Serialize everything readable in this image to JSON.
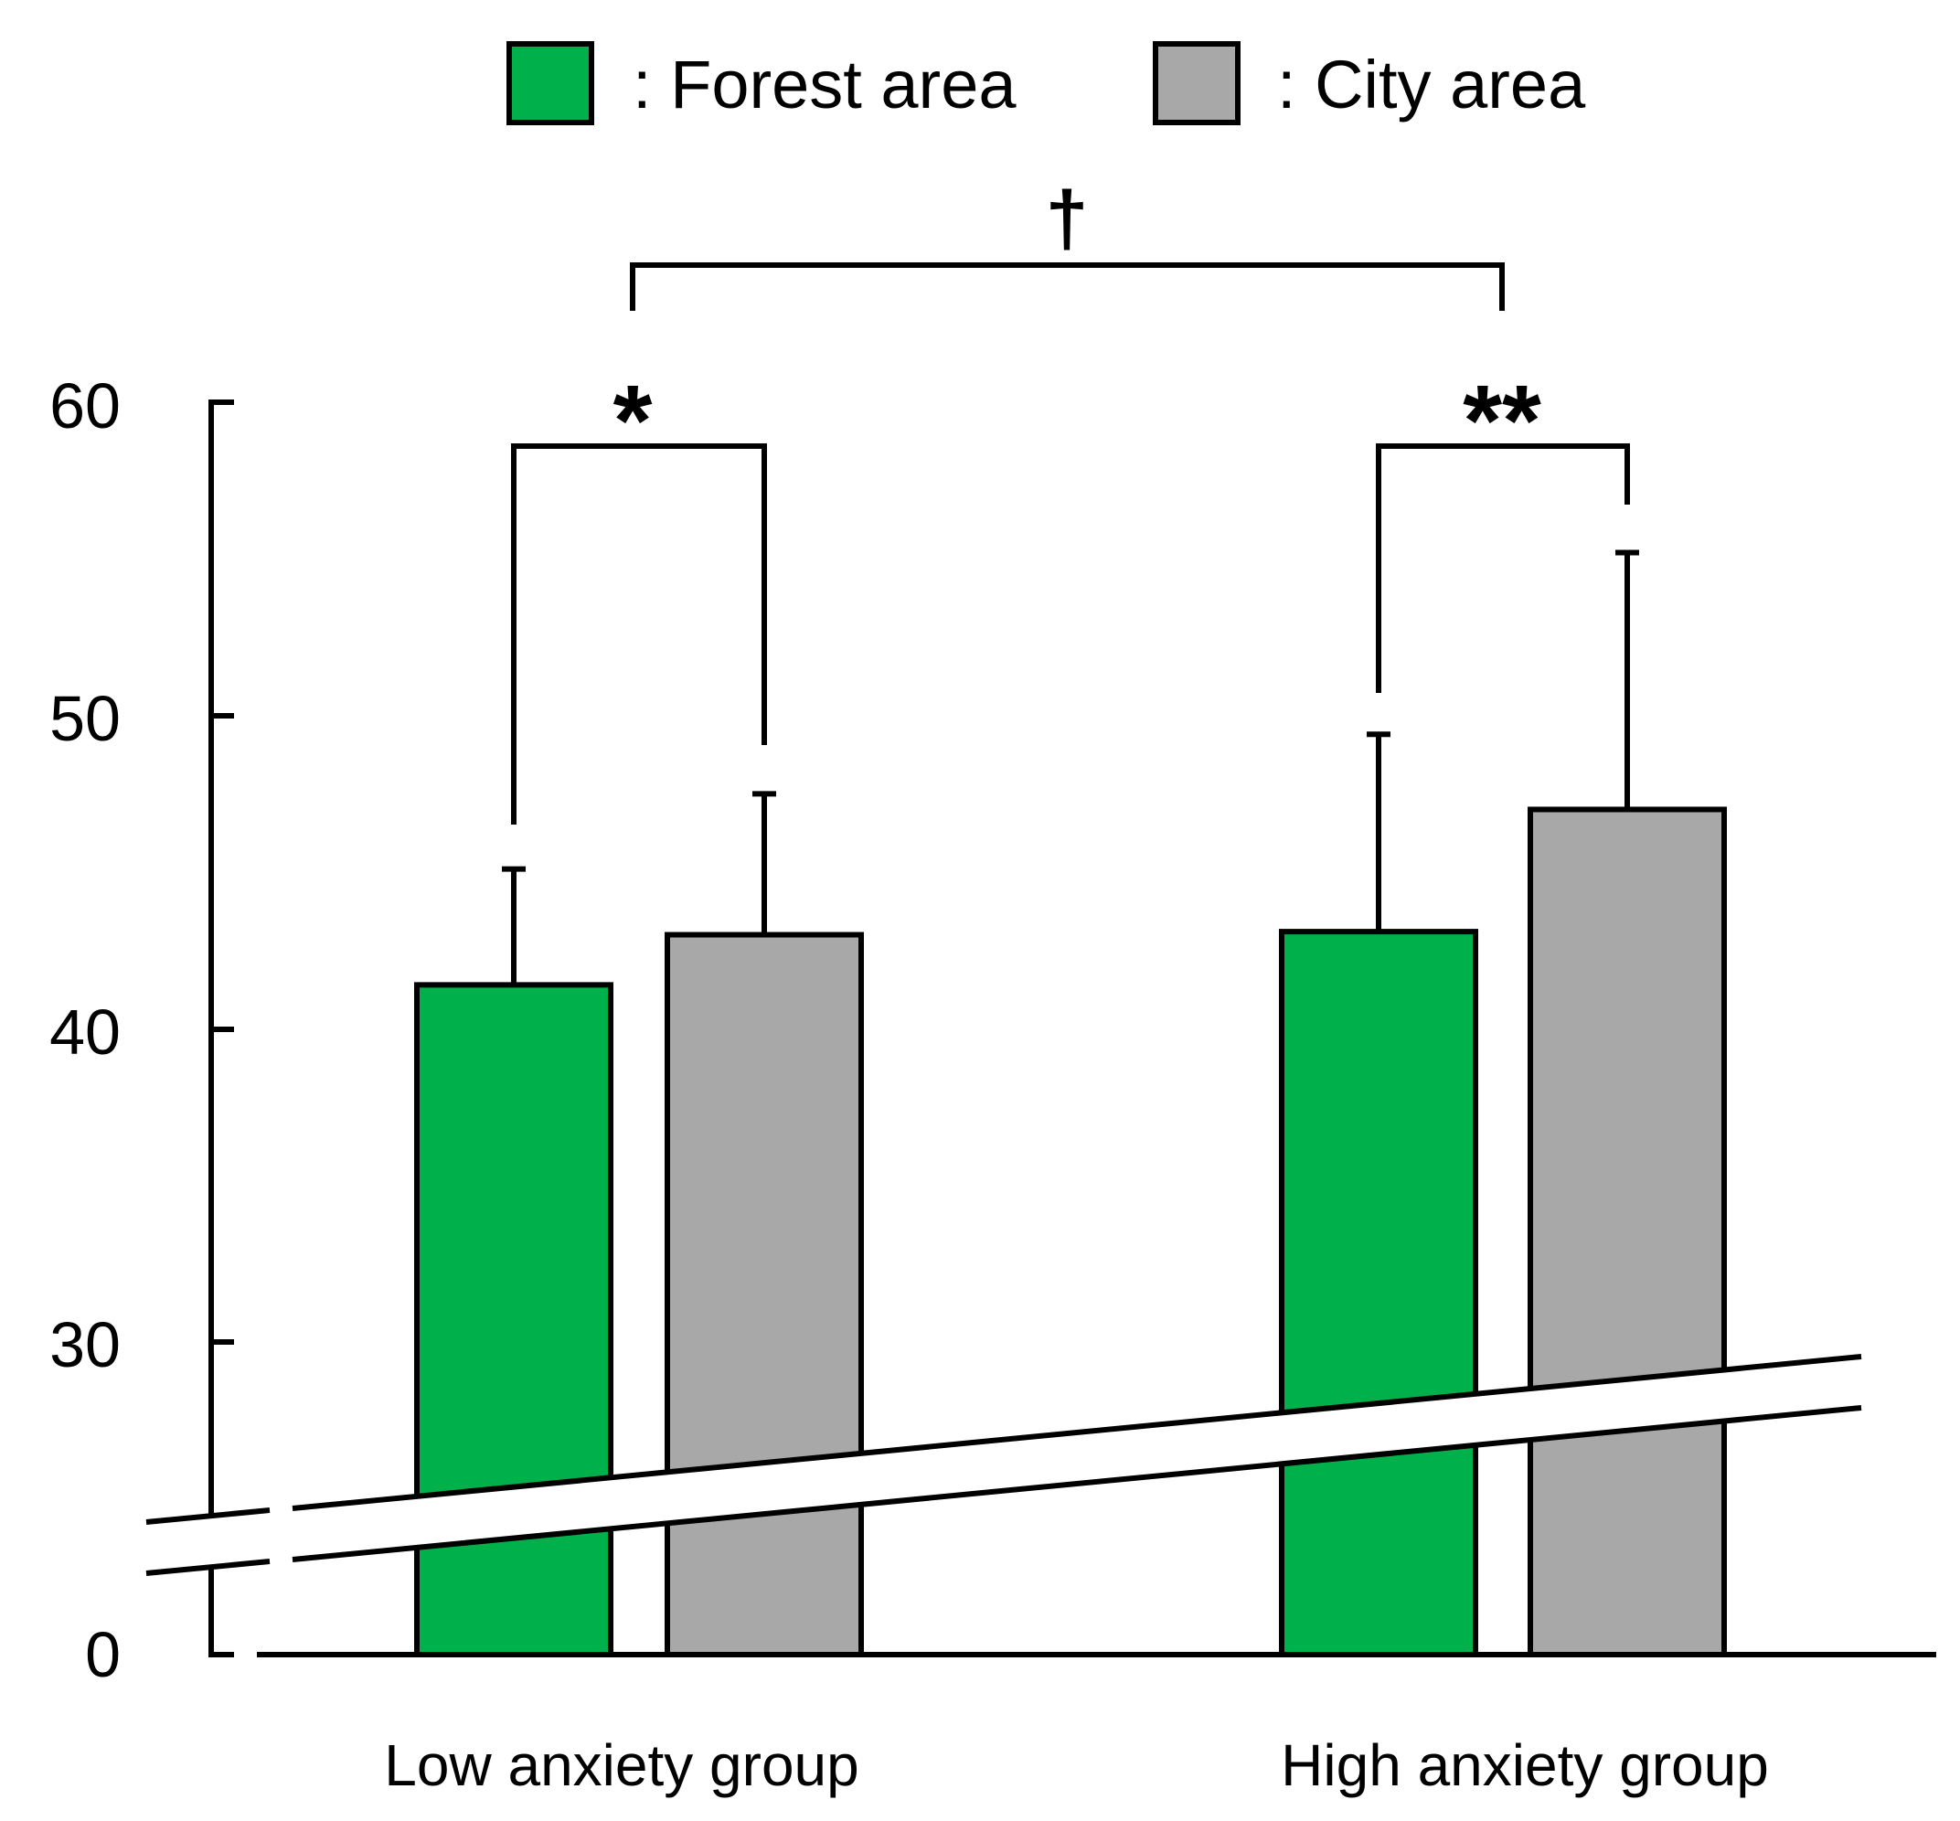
{
  "chart_data": {
    "type": "bar",
    "title": "",
    "xlabel": "",
    "ylabel": "",
    "categories": [
      "Low anxiety group",
      "High anxiety group"
    ],
    "series": [
      {
        "name": "Forest area",
        "legend_label": ": Forest area",
        "color": "#00b04a",
        "values": [
          41.4,
          43.1
        ],
        "errors": [
          3.7,
          6.3
        ]
      },
      {
        "name": "City area",
        "legend_label": ": City area",
        "color": "#a8a8a8",
        "values": [
          43.0,
          47.0
        ],
        "errors": [
          4.5,
          8.2
        ]
      }
    ],
    "ylim": [
      20,
      60
    ],
    "yticks": [
      60,
      50,
      40,
      30
    ],
    "ytick_labels": [
      "60",
      "50",
      "40",
      "30"
    ],
    "baseline_label": "0",
    "axis_break": true,
    "grid": false,
    "legend_position": "top-center",
    "significance": [
      {
        "label": "*",
        "between": "Forest area vs City area",
        "group": "Low anxiety group"
      },
      {
        "label": "**",
        "between": "Forest area vs City area",
        "group": "High anxiety group"
      },
      {
        "label": "†",
        "between": "Low anxiety group vs High anxiety group",
        "group": ""
      }
    ]
  }
}
